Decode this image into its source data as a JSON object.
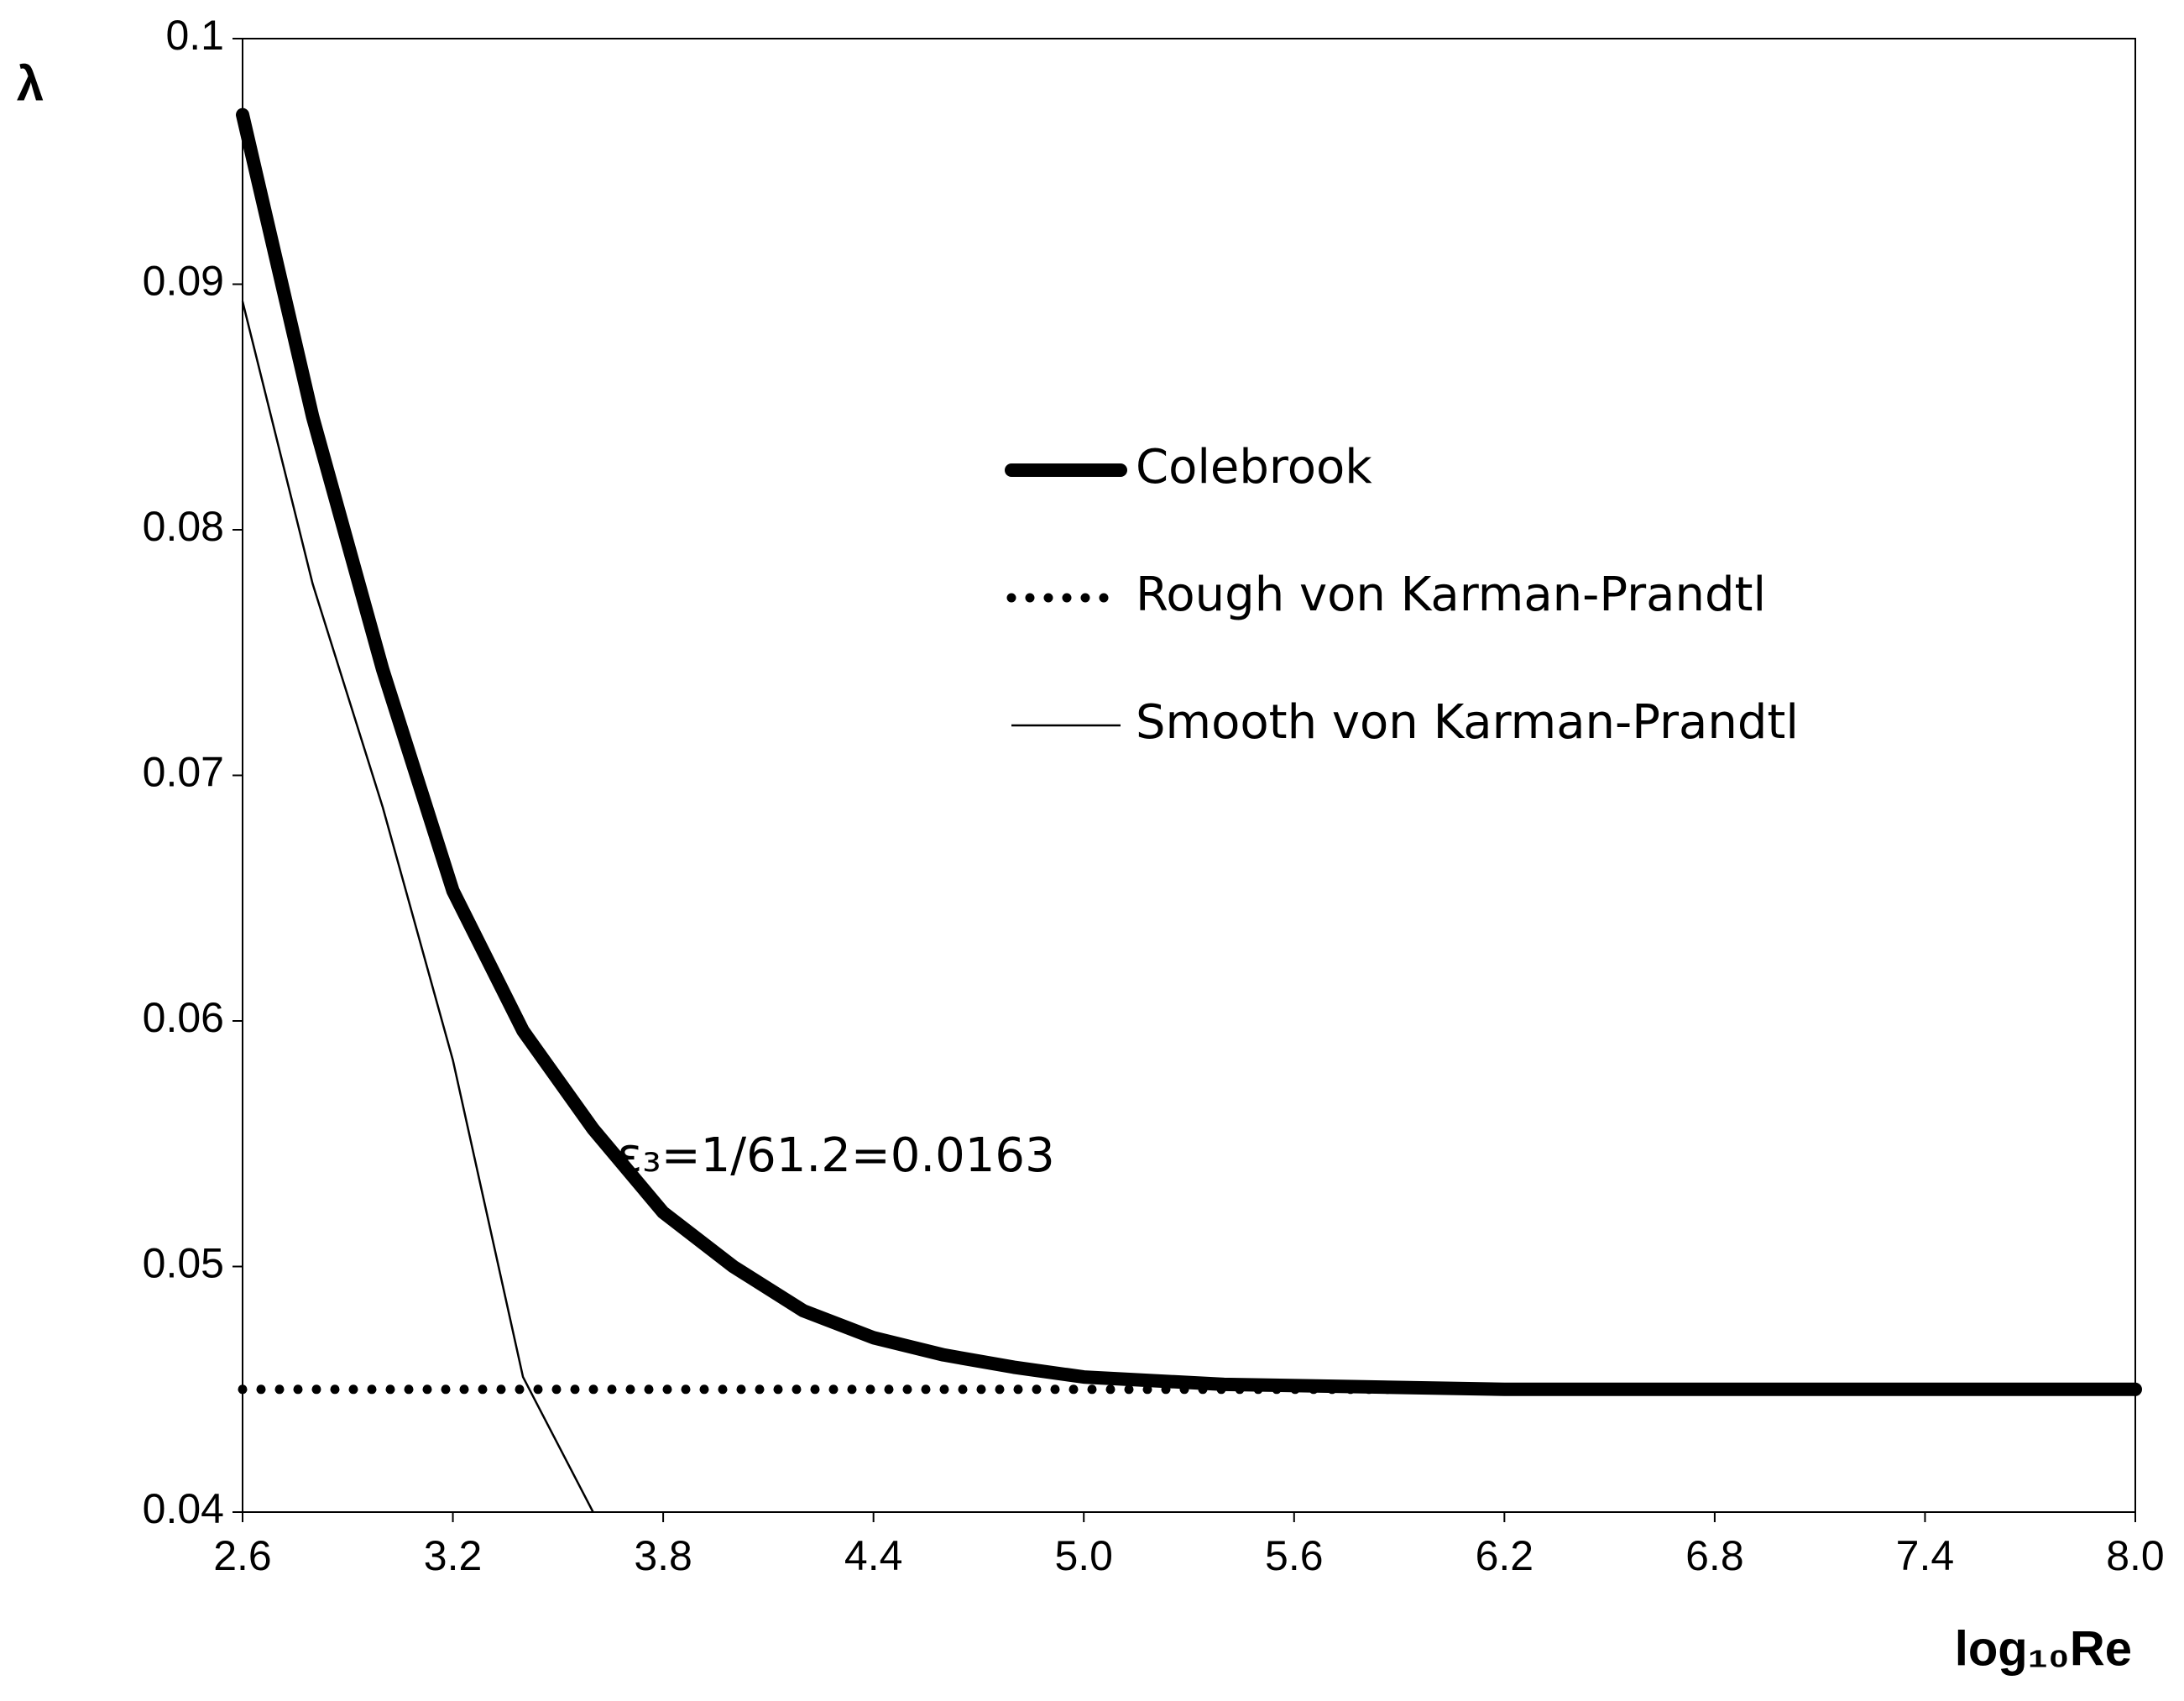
{
  "chart_data": {
    "type": "line",
    "y_label": "λ",
    "x_label": "log₁₀Re",
    "annotation": "ε₃=1/61.2=0.0163",
    "xlim": [
      2.6,
      8.0
    ],
    "ylim": [
      0.04,
      0.1
    ],
    "xticks": [
      2.6,
      3.2,
      3.8,
      4.4,
      {
        "value": 5,
        "label": "5.0"
      },
      5.6,
      6.2,
      6.8,
      7.4,
      {
        "value": 8,
        "label": "8.0"
      }
    ],
    "yticks": [
      0.04,
      0.05,
      0.06,
      0.07,
      0.08,
      0.09,
      0.1
    ],
    "grid": false,
    "legend": "center right",
    "series": [
      {
        "name": "Colebrook",
        "color": "#000000",
        "style": "thick",
        "x": [
          2.6,
          2.8,
          3.0,
          3.2,
          3.4,
          3.6,
          3.8,
          4.0,
          4.2,
          4.4,
          4.6,
          4.8,
          5.0,
          5.4,
          5.8,
          6.2,
          7.0,
          8.0
        ],
        "values": [
          0.0969,
          0.0846,
          0.0743,
          0.0653,
          0.0596,
          0.0556,
          0.0522,
          0.05,
          0.0482,
          0.0471,
          0.0464,
          0.0459,
          0.0455,
          0.0452,
          0.0451,
          0.045,
          0.045,
          0.045
        ]
      },
      {
        "name": "Rough von Karman-Prandtl",
        "color": "#000000",
        "style": "dotted",
        "x": [
          2.6,
          8.0
        ],
        "values": [
          0.045,
          0.045
        ]
      },
      {
        "name": "Smooth von Karman-Prandtl",
        "color": "#000000",
        "style": "thin",
        "x": [
          2.6,
          2.8,
          3.0,
          3.2,
          3.4,
          3.6
        ],
        "values": [
          0.0893,
          0.0778,
          0.0687,
          0.0584,
          0.0455,
          0.04
        ]
      }
    ]
  }
}
